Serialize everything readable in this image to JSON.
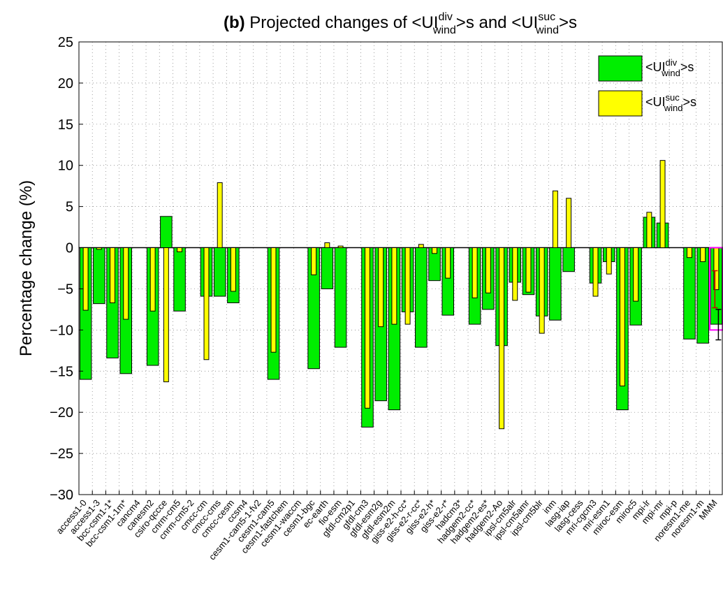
{
  "chart_data": {
    "type": "bar",
    "title": {
      "prefix": "(b)",
      "text_parts": [
        "Projected changes of <UI",
        "div",
        "wind",
        ">s and <UI",
        "suc",
        "wind",
        ">s"
      ]
    },
    "xlabel": "",
    "ylabel": "Percentage change (%)",
    "ylim": [
      -30,
      25
    ],
    "yticks": [
      -30,
      -25,
      -20,
      -15,
      -10,
      -5,
      0,
      5,
      10,
      15,
      20,
      25
    ],
    "grid": true,
    "legend_position": "top-right",
    "categories": [
      "access1-0",
      "access1-3",
      "bcc-csm1-1*",
      "bcc-csm1-1m*",
      "cancm4",
      "canesm2",
      "csiro-qccce",
      "cnrm-cm5",
      "cnrm-cm5-2",
      "cmcc-cm",
      "cmcc-cms",
      "cmcc-cesm",
      "ccsm4",
      "cesm1-cam5-1-fv2",
      "cesm1-cam5",
      "cesm1-fastchem",
      "cesm1-waccm",
      "cesm1-bgc",
      "ec-earth",
      "fio-esm",
      "gfdl-cm2p1",
      "gfdl-cm3",
      "gfdl-esm2g",
      "gfdl-esm2m",
      "giss-e2-h-cc*",
      "giss-e2-r-cc*",
      "giss-e2-h*",
      "giss-e2-r*",
      "hadcm3*",
      "hadgem2-cc*",
      "hadgem2-es*",
      "hadgem2-Ao",
      "ipsl-cm5alr",
      "ipsl-cm5amr",
      "ipsl-cm5blr",
      "inm",
      "lasg-iap",
      "lasg-cess",
      "mri-cgcm3",
      "mri-esm1",
      "miroc-esm",
      "miroc5",
      "mpi-lr",
      "mpi-mr",
      "mpi-p",
      "noresm1-me",
      "noresm1-m",
      "MMM"
    ],
    "series": [
      {
        "name_parts": [
          "<UI",
          "div",
          "wind",
          ">s"
        ],
        "color": "#00ee00",
        "values": [
          -16.0,
          -6.8,
          -13.4,
          -15.3,
          null,
          -14.3,
          3.8,
          -7.7,
          null,
          -5.9,
          -5.9,
          -6.7,
          null,
          null,
          -16.0,
          null,
          null,
          -14.7,
          -5.0,
          -12.1,
          null,
          -21.8,
          -18.6,
          -19.7,
          -7.8,
          -12.1,
          -4.0,
          -8.2,
          null,
          -9.3,
          -7.5,
          -11.9,
          -4.2,
          -5.7,
          -8.3,
          -8.8,
          -2.9,
          null,
          -4.3,
          -1.7,
          -19.7,
          -9.4,
          3.7,
          3.0,
          null,
          -11.1,
          -11.6,
          -9.3
        ]
      },
      {
        "name_parts": [
          "<UI",
          "suc",
          "wind",
          ">s"
        ],
        "color": "#ffff00",
        "values": [
          -7.6,
          -0.2,
          -6.7,
          -8.7,
          null,
          -7.7,
          -16.3,
          -0.5,
          null,
          -13.6,
          7.9,
          -5.3,
          null,
          null,
          -12.7,
          null,
          null,
          -3.3,
          0.6,
          0.2,
          null,
          -19.5,
          -9.6,
          -9.3,
          -9.3,
          0.4,
          -0.7,
          -3.7,
          null,
          -6.1,
          -5.5,
          -22.0,
          -6.4,
          -5.4,
          -10.4,
          6.9,
          6.0,
          null,
          -5.9,
          -3.2,
          -16.8,
          -6.5,
          4.3,
          10.6,
          null,
          -1.2,
          -1.7,
          -5.1
        ]
      }
    ],
    "mmm_spread": {
      "box_color": "#ff00ff",
      "errorbar_color": "#cc0000",
      "box": [
        -10.0,
        0.0
      ],
      "error_div": [
        -11.2,
        -7.5
      ],
      "error_suc": [
        -7.3,
        -2.8
      ]
    }
  }
}
